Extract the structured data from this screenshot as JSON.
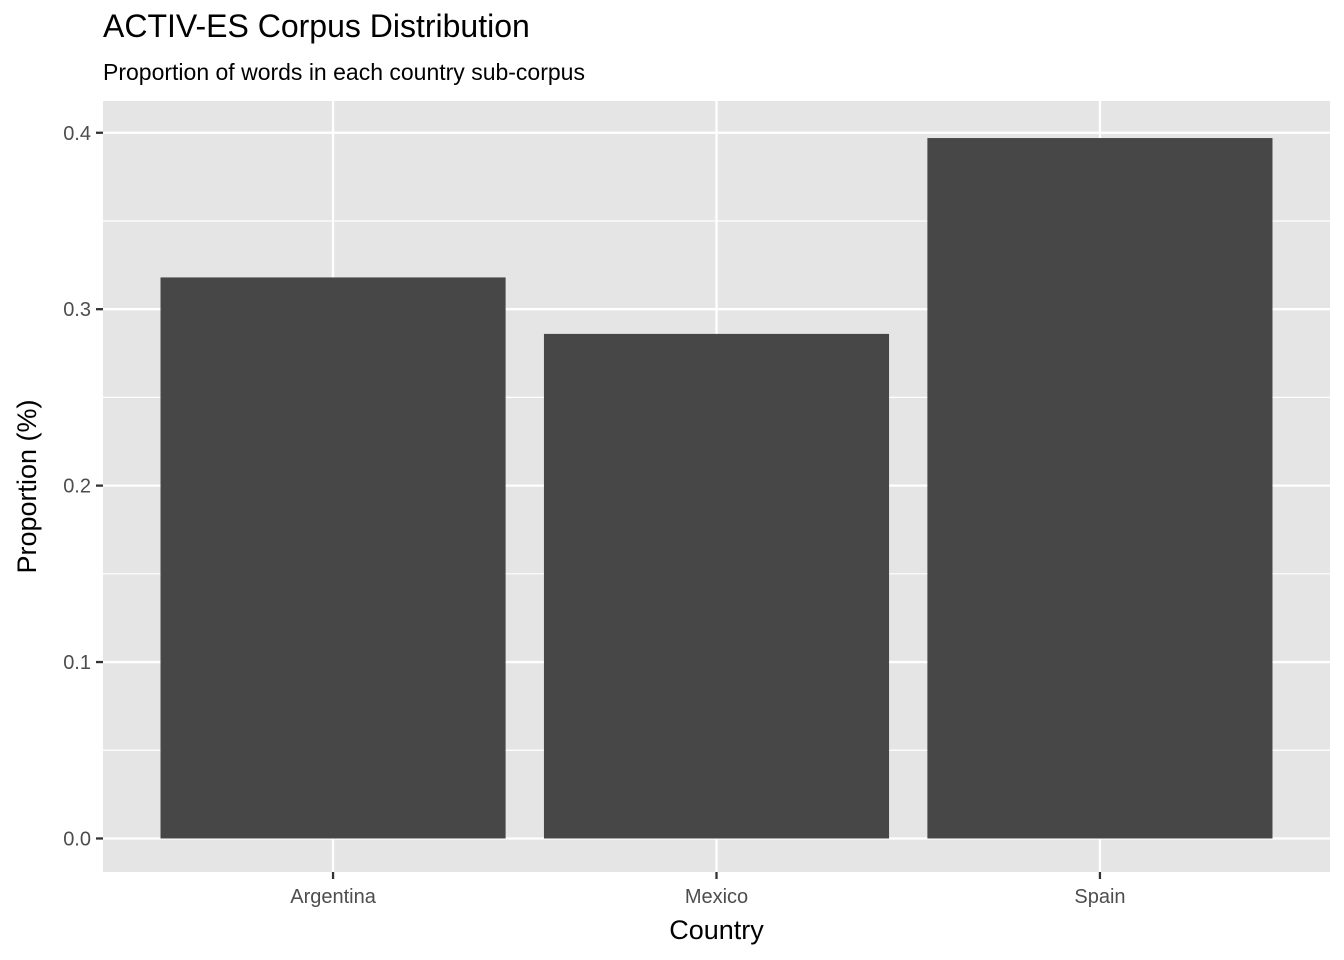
{
  "chart_data": {
    "type": "bar",
    "title": "ACTIV-ES Corpus Distribution",
    "subtitle": "Proportion of words in each country sub-corpus",
    "xlabel": "Country",
    "ylabel": "Proportion (%)",
    "categories": [
      "Argentina",
      "Mexico",
      "Spain"
    ],
    "values": [
      0.318,
      0.286,
      0.397
    ],
    "ylim": [
      -0.019,
      0.418
    ],
    "yticks": [
      0.0,
      0.1,
      0.2,
      0.3,
      0.4
    ],
    "ytick_labels": [
      "0.0",
      "0.1",
      "0.2",
      "0.3",
      "0.4"
    ],
    "grid": true,
    "colors": {
      "bar": "#474747",
      "panel": "#e5e5e5",
      "grid": "#ffffff",
      "ticks": "#333333"
    }
  }
}
